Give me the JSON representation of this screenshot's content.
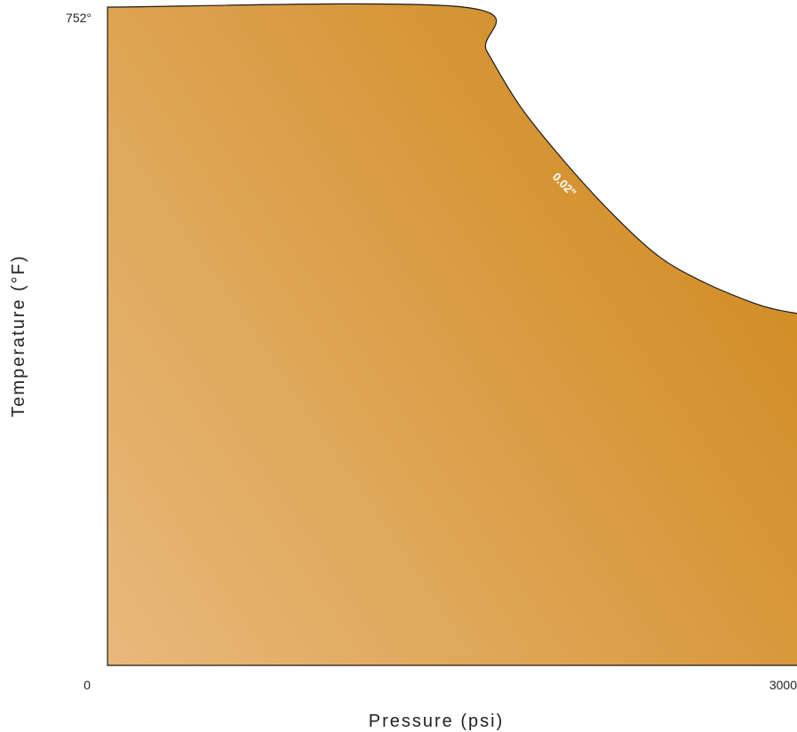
{
  "chart_data": {
    "type": "area",
    "title": "",
    "xlabel": "Pressure (psi)",
    "ylabel": "Temperature  (°F)",
    "xlim": [
      0,
      3000
    ],
    "ylim": [
      0,
      752
    ],
    "x_tick_labels": [
      "0",
      "3000"
    ],
    "y_tick_labels": [
      "752°"
    ],
    "grid": false,
    "legend": "none",
    "series": [
      {
        "name": "0.02\"",
        "label": "0.02\"",
        "x": [
          0,
          1550,
          1650,
          1800,
          2000,
          2200,
          2400,
          2600,
          2800,
          2900,
          3000
        ],
        "y": [
          752,
          752,
          702,
          637,
          572,
          515,
          467,
          437,
          415,
          407,
          402
        ]
      }
    ],
    "colors": {
      "fill_light": "#e8b97c",
      "fill_dark": "#d18b22",
      "outline": "#1a1a1a",
      "label": "#ffffff"
    }
  }
}
